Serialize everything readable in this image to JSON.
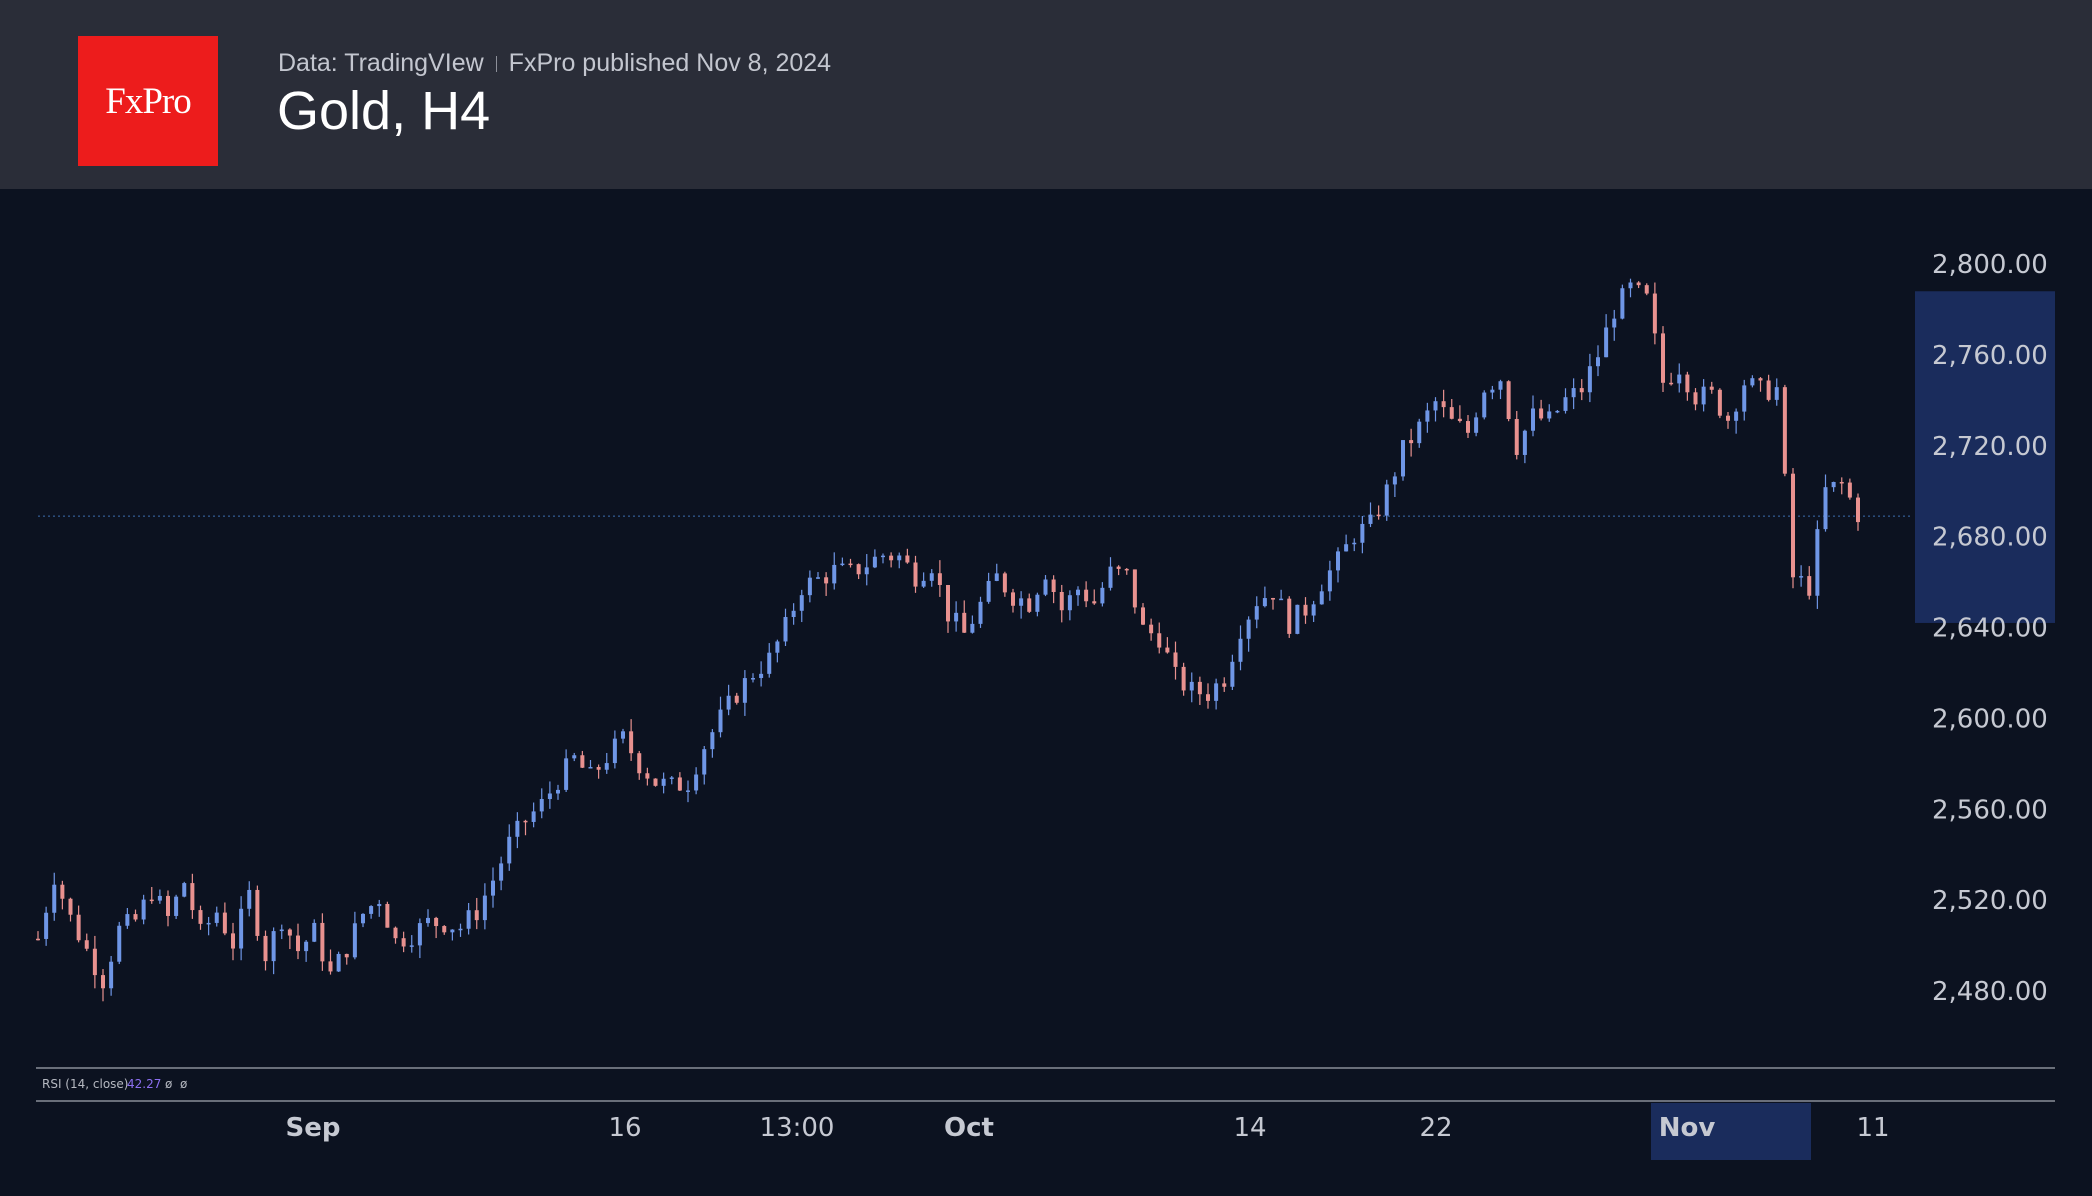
{
  "header": {
    "logo_text": "FxPro",
    "data_source": "Data: TradingVIew",
    "publisher": "FxPro published Nov 8, 2024",
    "title": "Gold, H4"
  },
  "rsi": {
    "label": "RSI (14, close)",
    "value": "42.27",
    "extra1": "ø",
    "extra2": "ø"
  },
  "colors": {
    "up": "#6f96e6",
    "down": "#e8918f",
    "background": "#0c1220",
    "header_bg": "#2a2d38",
    "brand_red": "#ed1c1c",
    "highlight": "#1a2c5c"
  },
  "chart_data": {
    "type": "candlestick",
    "symbol": "Gold",
    "timeframe": "H4",
    "y_ticks": [
      "2,480.00",
      "2,520.00",
      "2,560.00",
      "2,600.00",
      "2,640.00",
      "2,680.00",
      "2,720.00",
      "2,760.00",
      "2,800.00"
    ],
    "ylim": [
      2455,
      2820
    ],
    "x_ticks": [
      {
        "label": "Sep",
        "bold": true
      },
      {
        "label": "16",
        "bold": false
      },
      {
        "label": "13:00",
        "bold": false
      },
      {
        "label": "Oct",
        "bold": true
      },
      {
        "label": "14",
        "bold": false
      },
      {
        "label": "22",
        "bold": false
      },
      {
        "label": "Nov",
        "bold": true,
        "highlight": true
      },
      {
        "label": "11",
        "bold": false
      }
    ],
    "last_price_line": 2689,
    "highlighted_price_range": [
      2642,
      2788
    ],
    "series": [
      {
        "name": "price",
        "values": [
          2503,
          2531,
          2512,
          2498,
          2485,
          2507,
          2511,
          2524,
          2512,
          2528,
          2505,
          2515,
          2501,
          2522,
          2496,
          2512,
          2498,
          2506,
          2487,
          2499,
          2514,
          2521,
          2502,
          2505,
          2510,
          2510,
          2508,
          2515,
          2529,
          2545,
          2555,
          2562,
          2573,
          2582,
          2574,
          2583,
          2591,
          2580,
          2572,
          2570,
          2572,
          2588,
          2600,
          2611,
          2620,
          2626,
          2640,
          2658,
          2661,
          2665,
          2664,
          2668,
          2672,
          2671,
          2663,
          2668,
          2646,
          2637,
          2650,
          2662,
          2654,
          2651,
          2665,
          2648,
          2657,
          2651,
          2664,
          2663,
          2639,
          2636,
          2618,
          2612,
          2611,
          2618,
          2640,
          2652,
          2656,
          2642,
          2648,
          2660,
          2669,
          2681,
          2685,
          2700,
          2718,
          2728,
          2739,
          2730,
          2726,
          2746,
          2750,
          2720,
          2733,
          2731,
          2740,
          2745,
          2760,
          2780,
          2789,
          2784,
          2748,
          2755,
          2742,
          2742,
          2732,
          2748,
          2744,
          2745,
          2662,
          2658,
          2700,
          2703,
          2690
        ]
      }
    ]
  }
}
